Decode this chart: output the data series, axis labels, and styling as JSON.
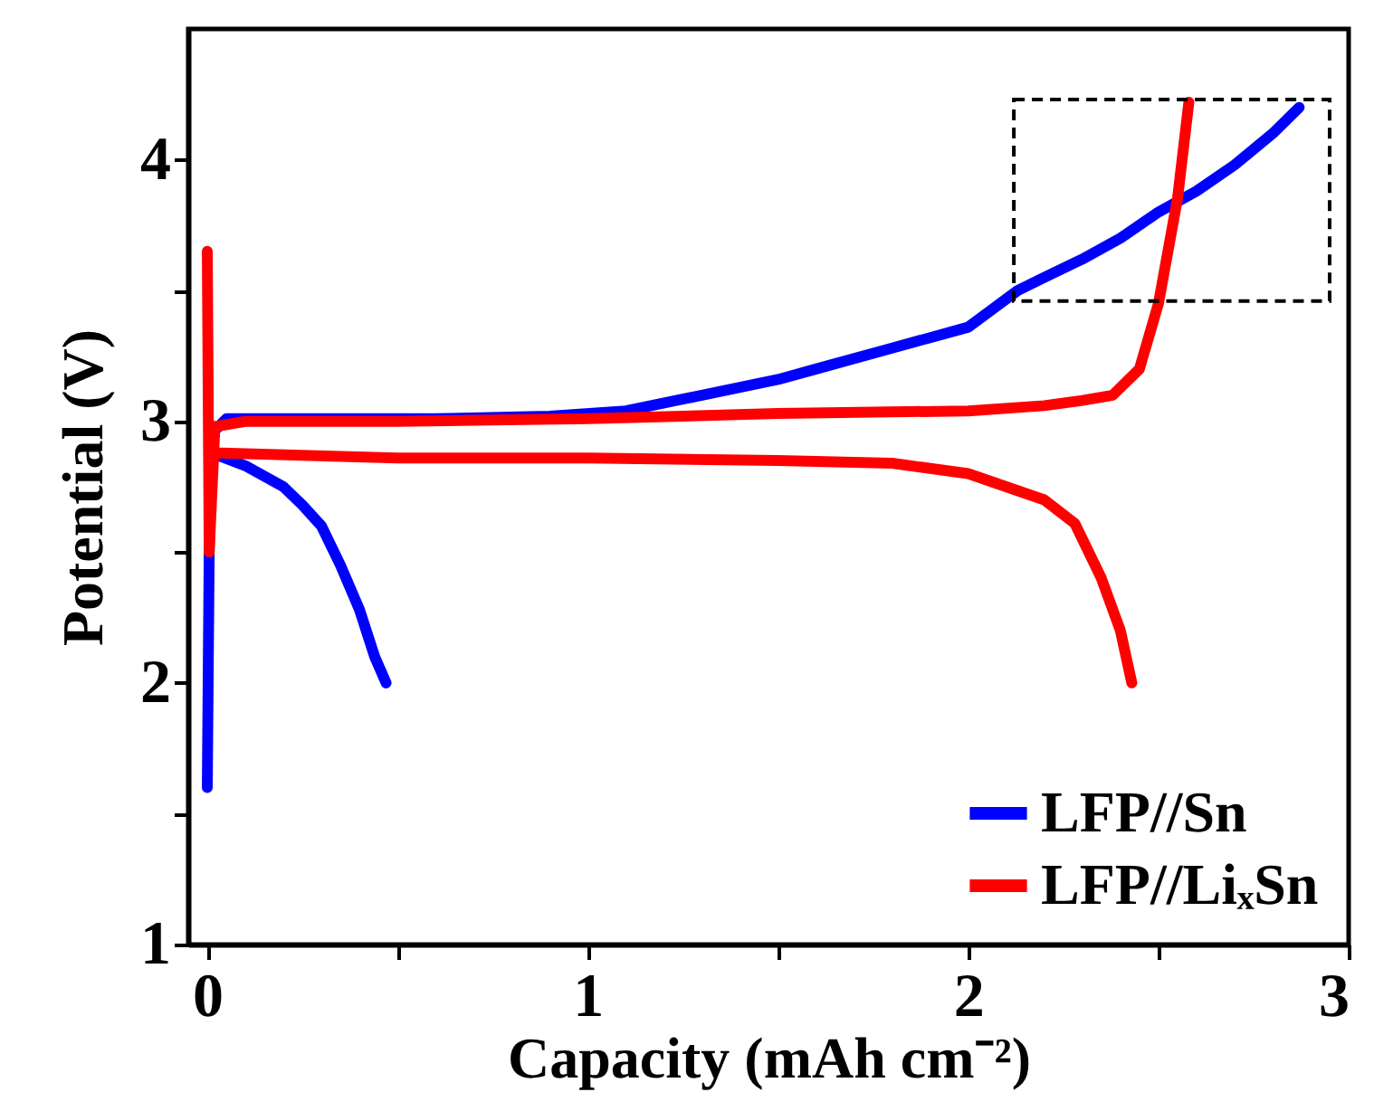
{
  "chart_data": {
    "type": "line",
    "xlabel": "Capacity (mAh cm⁻²)",
    "ylabel": "Potential (V)",
    "xlim": [
      -0.05,
      3
    ],
    "ylim": [
      1,
      4.5
    ],
    "xticks": [
      0,
      {
        "value": 0.5,
        "label": null
      },
      1,
      {
        "value": 1.5,
        "label": null
      },
      2,
      {
        "value": 2.5,
        "label": null
      },
      3
    ],
    "yticks": [
      1,
      {
        "value": 1.5,
        "label": null
      },
      2,
      {
        "value": 2.5,
        "label": null
      },
      3,
      {
        "value": 3.5,
        "label": null
      },
      4
    ],
    "grid": false,
    "legend": "bottom right",
    "marker": "none",
    "line_style": "solid",
    "series": [
      {
        "name": "LFP//Sn",
        "color": "#0000ff",
        "x": [
          0,
          0.005,
          0.01,
          0.05,
          0.6,
          0.9,
          1.1,
          1.3,
          1.5,
          1.6,
          1.8,
          1.9,
          2.0,
          2.13,
          2.2,
          2.3,
          2.4,
          2.5,
          2.6,
          2.7,
          2.8,
          2.87
        ],
        "values": [
          1.6,
          2.5,
          2.95,
          3.01,
          3.01,
          3.02,
          3.04,
          3.1,
          3.16,
          3.2,
          3.28,
          3.32,
          3.36,
          3.5,
          3.55,
          3.62,
          3.7,
          3.8,
          3.88,
          3.98,
          4.1,
          4.2
        ]
      },
      {
        "color": "#0000ff",
        "x": [
          0.01,
          0.1,
          0.2,
          0.25,
          0.3,
          0.35,
          0.4,
          0.44,
          0.47
        ],
        "values": [
          2.88,
          2.83,
          2.75,
          2.68,
          2.6,
          2.45,
          2.28,
          2.1,
          2.0
        ]
      },
      {
        "name": "LFP//LiₓSn",
        "color": "#ff0000",
        "x": [
          0,
          0.005,
          0.02,
          0.1,
          0.5,
          1.0,
          1.5,
          2.0,
          2.2,
          2.3,
          2.38,
          2.45,
          2.5,
          2.55,
          2.58
        ],
        "values": [
          3.65,
          2.5,
          2.98,
          3.0,
          3.0,
          3.01,
          3.03,
          3.04,
          3.06,
          3.08,
          3.1,
          3.2,
          3.45,
          3.85,
          4.22
        ]
      },
      {
        "color": "#ff0000",
        "x": [
          0.01,
          0.5,
          1.0,
          1.5,
          1.8,
          2.0,
          2.1,
          2.2,
          2.28,
          2.35,
          2.4,
          2.43
        ],
        "values": [
          2.88,
          2.86,
          2.86,
          2.85,
          2.84,
          2.8,
          2.75,
          2.7,
          2.61,
          2.4,
          2.2,
          2.0
        ]
      }
    ]
  }
}
